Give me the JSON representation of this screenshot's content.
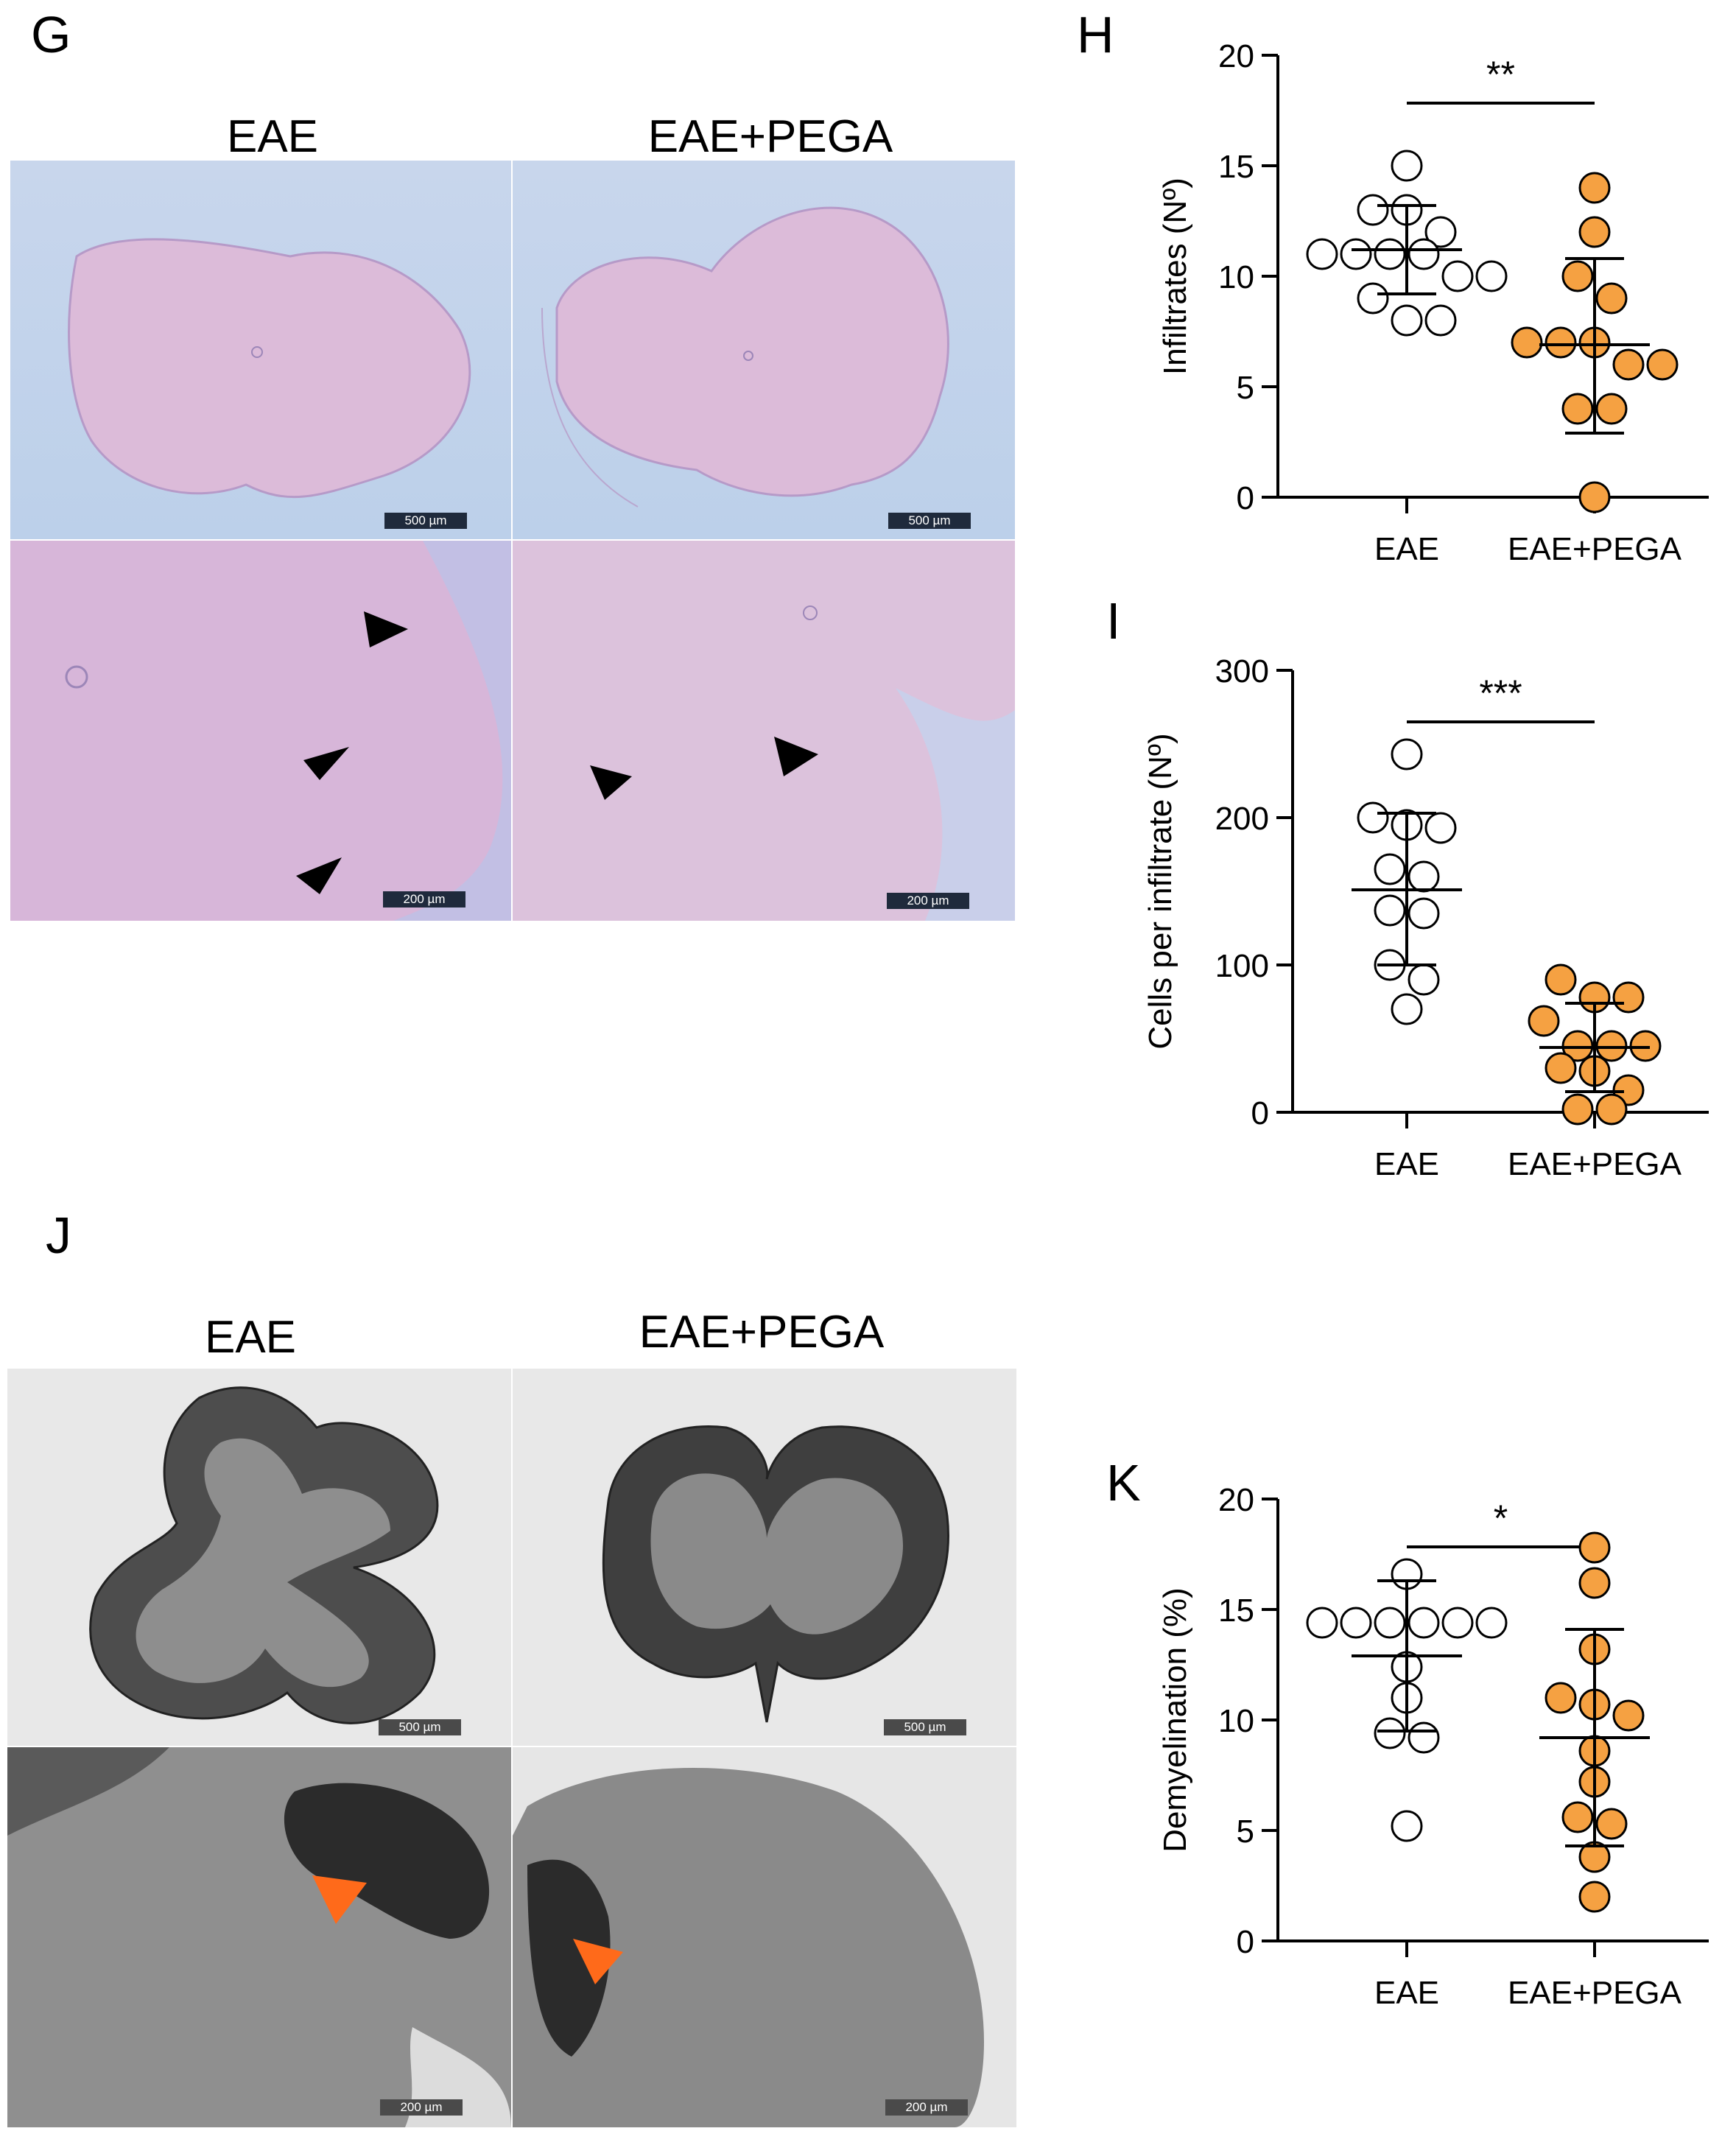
{
  "panels": {
    "G": {
      "letter": "G",
      "titles": [
        "EAE",
        "EAE+PEGA"
      ],
      "scalebars": [
        "500 µm",
        "500 µm",
        "200 µm",
        "200 µm"
      ]
    },
    "J": {
      "letter": "J",
      "titles": [
        "EAE",
        "EAE+PEGA"
      ],
      "scalebars": [
        "500 µm",
        "500 µm",
        "200 µm",
        "200 µm"
      ]
    },
    "H": {
      "letter": "H"
    },
    "I": {
      "letter": "I"
    },
    "K": {
      "letter": "K"
    }
  },
  "colors": {
    "treated": "#f5a142",
    "control": "#ffffff",
    "arrow_orange": "#ff6a1a",
    "arrow_black": "#000000"
  },
  "chart_data": [
    {
      "id": "H",
      "type": "scatter",
      "categories": [
        "EAE",
        "EAE+PEGA"
      ],
      "ylabel": "Infiltrates (Nº)",
      "ylim": [
        0,
        20
      ],
      "yticks": [
        0,
        5,
        10,
        15,
        20
      ],
      "significance": "**",
      "series": [
        {
          "category": "EAE",
          "points": [
            15,
            13,
            13,
            12,
            11,
            11,
            11,
            11,
            10,
            10,
            9,
            8,
            8
          ],
          "mean": 11.2,
          "sd_low": 9.2,
          "sd_high": 13.2
        },
        {
          "category": "EAE+PEGA",
          "points": [
            14,
            12,
            10,
            9,
            7,
            7,
            7,
            6,
            6,
            4,
            4,
            0
          ],
          "mean": 6.9,
          "sd_low": 2.9,
          "sd_high": 10.8
        }
      ]
    },
    {
      "id": "I",
      "type": "scatter",
      "categories": [
        "EAE",
        "EAE+PEGA"
      ],
      "ylabel": "Cells per infiltrate (Nº)",
      "ylim": [
        0,
        300
      ],
      "yticks": [
        0,
        100,
        200,
        300
      ],
      "significance": "***",
      "series": [
        {
          "category": "EAE",
          "points": [
            243,
            200,
            195,
            193,
            165,
            160,
            137,
            135,
            100,
            90,
            70
          ],
          "mean": 151,
          "sd_low": 100,
          "sd_high": 203
        },
        {
          "category": "EAE+PEGA",
          "points": [
            90,
            78,
            78,
            62,
            45,
            45,
            45,
            30,
            28,
            15,
            2,
            2
          ],
          "mean": 44,
          "sd_low": 14,
          "sd_high": 74
        }
      ]
    },
    {
      "id": "K",
      "type": "scatter",
      "categories": [
        "EAE",
        "EAE+PEGA"
      ],
      "ylabel": "Demyelination (%)",
      "ylim": [
        0,
        20
      ],
      "yticks": [
        0,
        5,
        10,
        15,
        20
      ],
      "significance": "*",
      "series": [
        {
          "category": "EAE",
          "points": [
            16.6,
            14.4,
            14.4,
            14.4,
            14.4,
            14.4,
            14.4,
            12.4,
            11,
            9.4,
            9.2,
            5.2
          ],
          "mean": 12.9,
          "sd_low": 9.5,
          "sd_high": 16.3
        },
        {
          "category": "EAE+PEGA",
          "points": [
            17.8,
            16.2,
            13.2,
            11,
            10.7,
            10.2,
            8.6,
            7.2,
            5.6,
            5.3,
            3.8,
            2
          ],
          "mean": 9.2,
          "sd_low": 4.3,
          "sd_high": 14.1
        }
      ]
    }
  ]
}
